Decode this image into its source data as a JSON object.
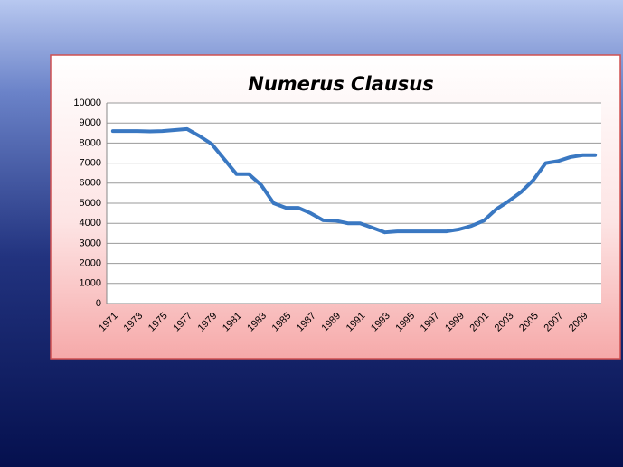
{
  "chart_data": {
    "type": "line",
    "title": "Numerus Clausus",
    "categories": [
      "1971",
      null,
      "1973",
      null,
      "1975",
      null,
      "1977",
      null,
      "1979",
      null,
      "1981",
      null,
      "1983",
      null,
      "1985",
      null,
      "1987",
      null,
      "1989",
      null,
      "1991",
      null,
      "1993",
      null,
      "1995",
      null,
      "1997",
      null,
      "1999",
      null,
      "2001",
      null,
      "2003",
      null,
      "2005",
      null,
      "2007",
      null,
      "2009",
      null
    ],
    "series": [
      {
        "name": "Numerus Clausus",
        "color": "#3a78c2",
        "values": [
          8600,
          8600,
          8600,
          8580,
          8600,
          8650,
          8700,
          8350,
          7950,
          7200,
          6450,
          6450,
          5900,
          5000,
          4770,
          4770,
          4500,
          4150,
          4130,
          4000,
          4000,
          3780,
          3550,
          3600,
          3600,
          3600,
          3600,
          3600,
          3700,
          3870,
          4130,
          4700,
          5100,
          5550,
          6150,
          7000,
          7100,
          7300,
          7400,
          7400
        ]
      }
    ],
    "ylim": [
      0,
      10000
    ],
    "yticks": [
      0,
      1000,
      2000,
      3000,
      4000,
      5000,
      6000,
      7000,
      8000,
      9000,
      10000
    ],
    "grid": true
  }
}
